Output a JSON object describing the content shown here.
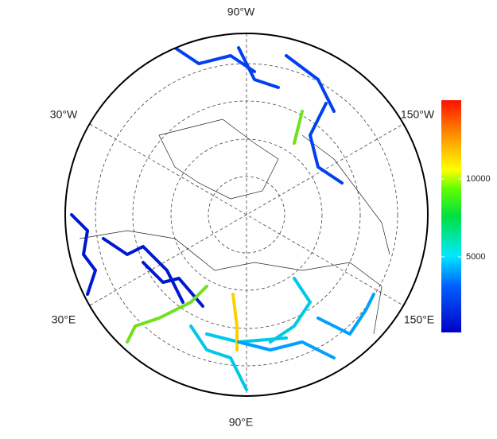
{
  "map": {
    "longitude_labels": [
      "90°W",
      "30°W",
      "150°W",
      "30°E",
      "150°E",
      "90°E"
    ],
    "colorbar": {
      "ylim": [
        150,
        15050
      ],
      "yticks": [
        5000,
        10000
      ]
    }
  }
}
